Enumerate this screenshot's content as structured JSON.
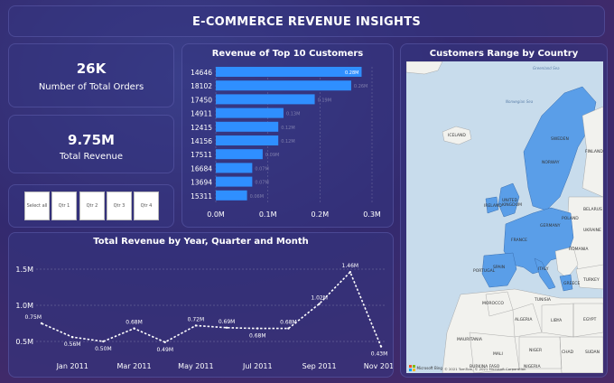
{
  "header": {
    "title": "E-COMMERCE REVENUE INSIGHTS"
  },
  "kpis": [
    {
      "value": "26K",
      "label": "Number of Total Orders"
    },
    {
      "value": "9.75M",
      "label": "Total Revenue"
    }
  ],
  "slicer": {
    "items": [
      "Select all",
      "Qtr 1",
      "Qtr 2",
      "Qtr 3",
      "Qtr 4"
    ]
  },
  "colors": {
    "bar": "#2f8fff",
    "map_highlight": "#5a9ee8",
    "accent": "#ffffff"
  },
  "chart_data": [
    {
      "type": "bar",
      "orientation": "horizontal",
      "title": "Revenue of Top 10 Customers",
      "categories": [
        "14646",
        "18102",
        "17450",
        "14911",
        "12415",
        "14156",
        "17511",
        "16684",
        "13694",
        "15311"
      ],
      "values": [
        0.28,
        0.26,
        0.19,
        0.13,
        0.12,
        0.12,
        0.09,
        0.07,
        0.07,
        0.06
      ],
      "data_labels": [
        "0.28M",
        "0.26M",
        "0.19M",
        "0.13M",
        "0.12M",
        "0.12M",
        "0.09M",
        "0.07M",
        "0.07M",
        "0.06M"
      ],
      "xticks": [
        "0.0M",
        "0.1M",
        "0.2M",
        "0.3M"
      ],
      "xlim": [
        0,
        0.3
      ],
      "unit": "M"
    },
    {
      "type": "line",
      "title": "Total Revenue by Year, Quarter and Month",
      "x_positions": [
        1,
        2,
        3,
        4,
        5,
        6,
        7,
        8,
        9,
        10,
        11,
        12
      ],
      "values": [
        0.75,
        0.56,
        0.5,
        0.68,
        0.49,
        0.72,
        0.69,
        0.68,
        0.68,
        1.02,
        1.46,
        0.43
      ],
      "data_labels": [
        "0.75M",
        "0.56M",
        "0.50M",
        "0.68M",
        "0.49M",
        "0.72M",
        "0.69M",
        "0.68M",
        "0.68M",
        "1.02M",
        "1.46M",
        "0.43M"
      ],
      "xtick_labels": [
        "Jan 2011",
        "Mar 2011",
        "May 2011",
        "Jul 2011",
        "Sep 2011",
        "Nov 2011"
      ],
      "xtick_positions": [
        2,
        4,
        6,
        8,
        10,
        12
      ],
      "yticks": [
        "0.5M",
        "1.0M",
        "1.5M"
      ],
      "ytick_values": [
        0.5,
        1.0,
        1.5
      ],
      "ylim": [
        0.4,
        1.6
      ],
      "grid": true
    }
  ],
  "map": {
    "title": "Customers Range by Country",
    "labels": [
      "ICELAND",
      "NORWAY",
      "SWEDEN",
      "FINLAND",
      "UNITED KINGDOM",
      "IRELAND",
      "GERMANY",
      "POLAND",
      "BELARUS",
      "FRANCE",
      "UKRAINE",
      "SPAIN",
      "PORTUGAL",
      "ITALY",
      "ROMANIA",
      "GREECE",
      "TURKEY",
      "MOROCCO",
      "ALGERIA",
      "LIBYA",
      "EGYPT",
      "TUNISIA",
      "MALI",
      "NIGER",
      "CHAD",
      "SUDAN",
      "NIGERIA",
      "MAURITANIA",
      "BURKINA FASO"
    ],
    "sea_labels": [
      "Norwegian Sea",
      "Greenland Sea"
    ],
    "credit": "© 2021 TomTom, © 2021 Microsoft Corporation",
    "logo": "Microsoft Bing"
  }
}
